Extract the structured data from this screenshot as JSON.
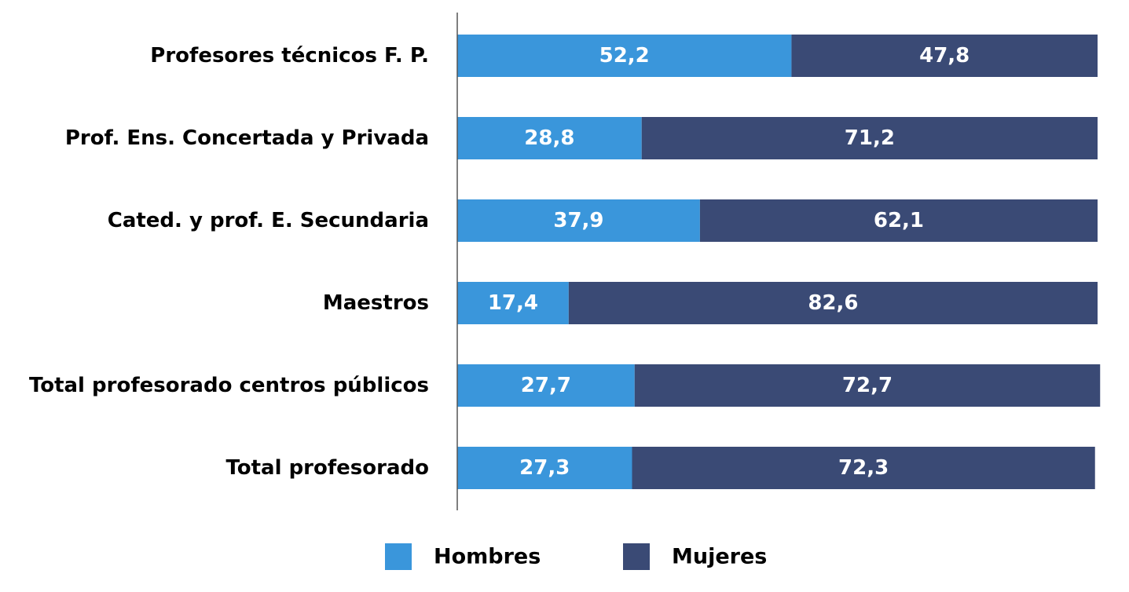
{
  "chart_data": {
    "type": "bar",
    "orientation": "horizontal",
    "stacked": true,
    "title": "",
    "xlabel": "",
    "ylabel": "",
    "xlim": [
      0,
      100
    ],
    "grid": false,
    "legend_position": "bottom",
    "categories": [
      "Profesores técnicos F. P.",
      "Prof. Ens. Concertada y Privada",
      "Cated. y prof. E. Secundaria",
      "Maestros",
      "Total profesorado centros públicos",
      "Total profesorado"
    ],
    "series": [
      {
        "name": "Hombres",
        "color": "#3a96db",
        "values": [
          52.2,
          28.8,
          37.9,
          17.4,
          27.7,
          27.3
        ],
        "labels": [
          "52,2",
          "28,8",
          "37,9",
          "17,4",
          "27,7",
          "27,3"
        ]
      },
      {
        "name": "Mujeres",
        "color": "#3a4a75",
        "values": [
          47.8,
          71.2,
          62.1,
          82.6,
          72.7,
          72.3
        ],
        "labels": [
          "47,8",
          "71,2",
          "62,1",
          "82,6",
          "72,7",
          "72,3"
        ]
      }
    ]
  }
}
